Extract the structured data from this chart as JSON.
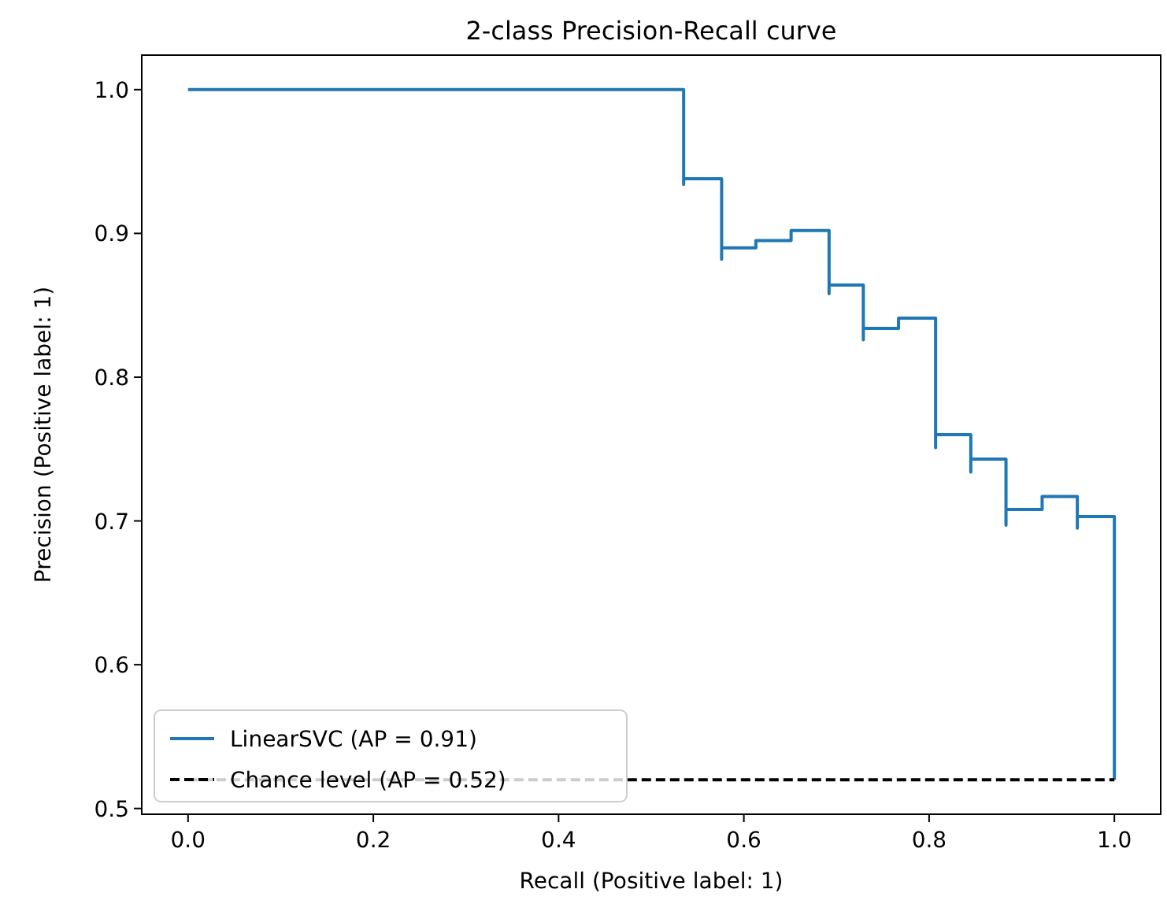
{
  "chart_data": {
    "type": "line",
    "title": "2-class Precision-Recall curve",
    "xlabel": "Recall (Positive label: 1)",
    "ylabel": "Precision (Positive label: 1)",
    "series": [
      {
        "name": "LinearSVC (AP = 0.91)",
        "type": "step",
        "color": "#1f77b4",
        "line_style": "solid",
        "x": [
          0,
          0.535,
          0.535,
          0.576,
          0.576,
          0.613,
          0.651,
          0.692,
          0.692,
          0.729,
          0.729,
          0.767,
          0.807,
          0.807,
          0.845,
          0.845,
          0.883,
          0.883,
          0.922,
          0.96,
          0.96,
          1.0
        ],
        "values": [
          1.0,
          0.934,
          0.938,
          0.882,
          0.89,
          0.895,
          0.902,
          0.858,
          0.864,
          0.826,
          0.834,
          0.841,
          0.751,
          0.76,
          0.734,
          0.743,
          0.697,
          0.708,
          0.717,
          0.695,
          0.703,
          0.52
        ]
      },
      {
        "name": "Chance level (AP = 0.52)",
        "color": "#000000",
        "line_style": "dashed",
        "x": [
          0,
          1
        ],
        "values": [
          0.52,
          0.52
        ]
      }
    ],
    "xlim": [
      -0.05,
      1.05
    ],
    "xticks": [
      {
        "value": 0,
        "label": "0.0"
      },
      0.2,
      0.4,
      0.6,
      0.8,
      {
        "value": 1,
        "label": "1.0"
      }
    ],
    "ylim": [
      0.496,
      1.024
    ],
    "yticks": [
      0.5,
      0.6,
      0.7,
      0.8,
      0.9,
      {
        "value": 1,
        "label": "1.0"
      }
    ],
    "grid": false,
    "legend": "bottom left",
    "marker": "none"
  }
}
